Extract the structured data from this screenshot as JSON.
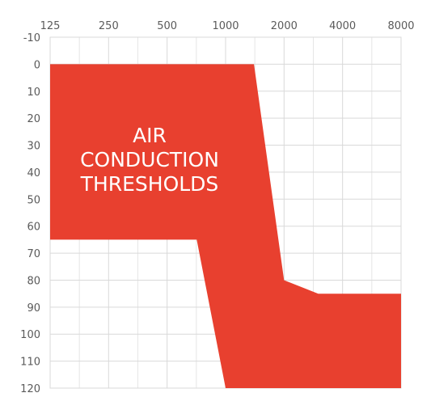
{
  "chart_data": {
    "type": "area",
    "title": "",
    "xlabel": "",
    "ylabel": "",
    "x_scale": "log",
    "y_inverted": true,
    "x_ticks": [
      "125",
      "250",
      "500",
      "1000",
      "2000",
      "4000",
      "8000"
    ],
    "y_ticks": [
      "-10",
      "0",
      "10",
      "20",
      "30",
      "40",
      "50",
      "60",
      "70",
      "80",
      "90",
      "100",
      "110",
      "120"
    ],
    "xlim": [
      125,
      8000
    ],
    "ylim": [
      -10,
      120
    ],
    "grid": true,
    "fill_color": "#E8402F",
    "series": [
      {
        "label_lines": [
          "AIR",
          "CONDUCTION",
          "THRESHOLDS"
        ],
        "upper_boundary": [
          {
            "x": 125,
            "y": 0
          },
          {
            "x": 1400,
            "y": 0
          },
          {
            "x": 2000,
            "y": 80
          },
          {
            "x": 3000,
            "y": 85
          },
          {
            "x": 8000,
            "y": 85
          }
        ],
        "lower_boundary": [
          {
            "x": 125,
            "y": 65
          },
          {
            "x": 710,
            "y": 65
          },
          {
            "x": 1000,
            "y": 120
          },
          {
            "x": 8000,
            "y": 120
          }
        ]
      }
    ]
  }
}
